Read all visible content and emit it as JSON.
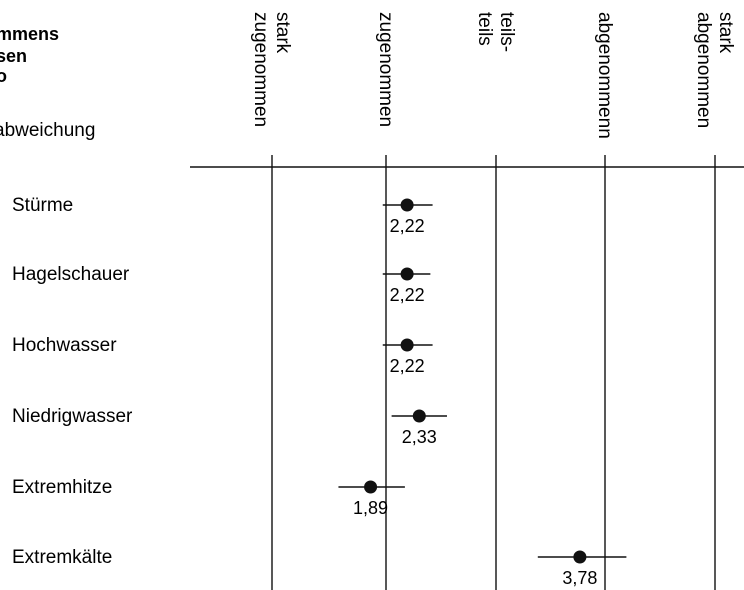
{
  "header": {
    "title_lines": [
      "mmens",
      "sen",
      "o"
    ],
    "subtitle": "abweichung"
  },
  "chart_data": {
    "type": "scatter",
    "orientation": "horizontal",
    "scale_labels": [
      [
        "stark",
        "zugenommen"
      ],
      [
        "zugenommen"
      ],
      [
        "teils-",
        "teils"
      ],
      [
        "abgenommenn"
      ],
      [
        "stark",
        "abgenommen"
      ]
    ],
    "scale_values": [
      1,
      2,
      3,
      4,
      5
    ],
    "xlim": [
      1,
      5
    ],
    "categories": [
      "Stürme",
      "Hagelschauer",
      "Hochwasser",
      "Niedrigwasser",
      "Extremhitze",
      "Extremkälte"
    ],
    "values": [
      2.22,
      2.22,
      2.22,
      2.33,
      1.89,
      3.78
    ],
    "value_labels": [
      "2,22",
      "2,22",
      "2,22",
      "2,33",
      "1,89",
      "3,78"
    ],
    "error_low": [
      2.0,
      2.0,
      2.0,
      2.08,
      1.6,
      3.4
    ],
    "error_high": [
      2.45,
      2.43,
      2.45,
      2.58,
      2.2,
      4.2
    ],
    "grid": true
  }
}
